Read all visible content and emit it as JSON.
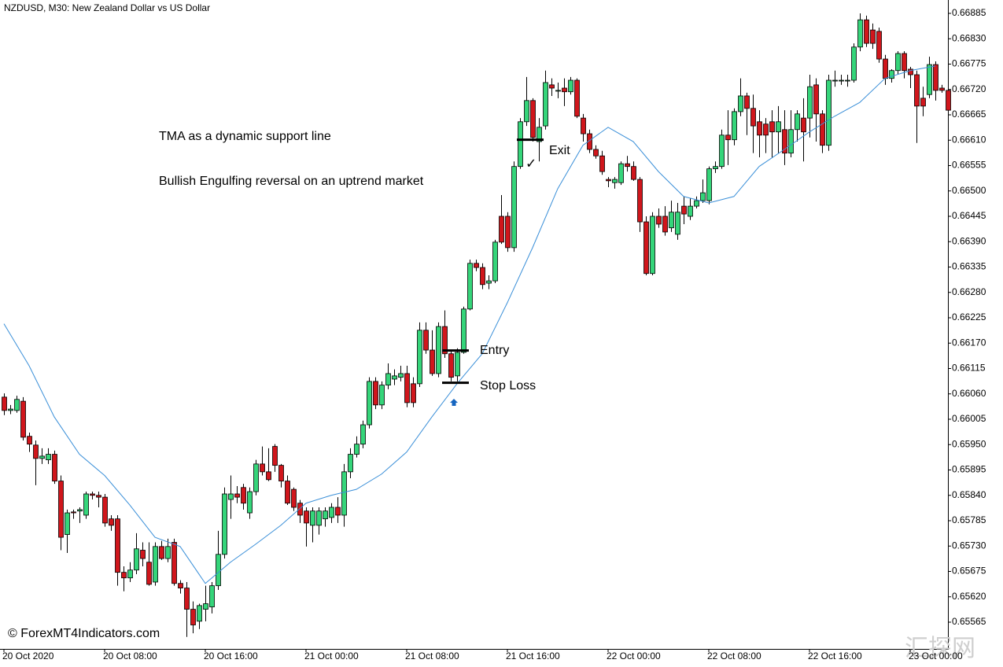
{
  "chart_data": {
    "type": "candlestick",
    "title": "NZDUSD, M30:  New Zealand Dollar vs US Dollar",
    "annotations": [
      "TMA as a dynamic support line",
      "Bullish Engulfing reversal on an uptrend market"
    ],
    "checkmark": "✓",
    "copyright": "© ForexMT4Indicators.com",
    "watermark": "汇探网",
    "bull_color": "#35d57a",
    "bear_color": "#d0161c",
    "tma_color": "#3a8fd8",
    "ylim": [
      0.65507,
      0.66914
    ],
    "yticks": [
      0.66885,
      {
        "value": 0.6683,
        "label": "0.66830"
      },
      0.66775,
      {
        "value": 0.6672,
        "label": "0.66720"
      },
      0.66665,
      {
        "value": 0.6661,
        "label": "0.66610"
      },
      0.66555,
      {
        "value": 0.665,
        "label": "0.66500"
      },
      0.66445,
      {
        "value": 0.6639,
        "label": "0.66390"
      },
      0.66335,
      {
        "value": 0.6628,
        "label": "0.66280"
      },
      0.66225,
      {
        "value": 0.6617,
        "label": "0.66170"
      },
      0.66115,
      {
        "value": 0.6606,
        "label": "0.66060"
      },
      0.66005,
      {
        "value": 0.6595,
        "label": "0.65950"
      },
      0.65895,
      {
        "value": 0.6584,
        "label": "0.65840"
      },
      0.65785,
      {
        "value": 0.6573,
        "label": "0.65730"
      },
      0.65675,
      {
        "value": 0.6562,
        "label": "0.65620"
      },
      0.65565
    ],
    "categories": [
      "20 Oct 2020",
      null,
      null,
      null,
      null,
      null,
      null,
      null,
      null,
      null,
      null,
      null,
      null,
      null,
      null,
      null,
      "20 Oct 08:00",
      null,
      null,
      null,
      null,
      null,
      null,
      null,
      null,
      null,
      null,
      null,
      null,
      null,
      null,
      null,
      "20 Oct 16:00",
      null,
      null,
      null,
      null,
      null,
      null,
      null,
      null,
      null,
      null,
      null,
      null,
      null,
      null,
      null,
      "21 Oct 00:00",
      null,
      null,
      null,
      null,
      null,
      null,
      null,
      null,
      null,
      null,
      null,
      null,
      null,
      null,
      null,
      "21 Oct 08:00",
      null,
      null,
      null,
      null,
      null,
      null,
      null,
      null,
      null,
      null,
      null,
      null,
      null,
      null,
      null,
      "21 Oct 16:00",
      null,
      null,
      null,
      null,
      null,
      null,
      null,
      null,
      null,
      null,
      null,
      null,
      null,
      null,
      null,
      "22 Oct 00:00",
      null,
      null,
      null,
      null,
      null,
      null,
      null,
      null,
      null,
      null,
      null,
      null,
      null,
      null,
      null,
      "22 Oct 08:00",
      null,
      null,
      null,
      null,
      null,
      null,
      null,
      null,
      null,
      null,
      null,
      null,
      null,
      null,
      null,
      "22 Oct 16:00",
      null,
      null,
      null,
      null,
      null,
      null,
      null,
      null,
      null,
      null,
      null,
      null,
      null,
      null,
      null,
      "23 Oct 00:00",
      null,
      null,
      null,
      null,
      null,
      null
    ],
    "open": [
      0.66053,
      0.66024,
      0.66024,
      0.66044,
      0.65968,
      0.65949,
      0.6592,
      0.65917,
      0.65929,
      0.65871,
      0.65755,
      0.65804,
      0.65806,
      0.65797,
      0.65843,
      0.6584,
      0.65836,
      0.65789,
      0.65789,
      0.65673,
      0.65661,
      0.65678,
      0.65721,
      0.65695,
      0.65652,
      0.65729,
      0.65703,
      0.65738,
      0.65649,
      0.65639,
      0.65593,
      0.65567,
      0.65593,
      0.65598,
      0.65644,
      0.65712,
      0.65831,
      0.65843,
      0.65857,
      0.65802,
      0.65848,
      0.65908,
      0.65891,
      0.65946,
      0.65905,
      0.65871,
      0.65853,
      0.65823,
      0.65806,
      0.65775,
      0.65775,
      0.65789,
      0.65792,
      0.65814,
      0.65797,
      0.65891,
      0.65929,
      0.65951,
      0.65993,
      0.66087,
      0.66036,
      0.66079,
      0.66092,
      0.66096,
      0.66104,
      0.66082,
      0.66082,
      0.66198,
      0.66155,
      0.66104,
      0.66206,
      0.66147,
      0.66099,
      0.6615,
      0.66244,
      0.66343,
      0.66334,
      0.663,
      0.66305,
      0.66445,
      0.66445,
      0.66377,
      0.66553,
      0.6665,
      0.66696,
      0.66607,
      0.66641,
      0.6673,
      0.66718,
      0.66723,
      0.66715,
      0.6674,
      0.66658,
      0.66624,
      0.6659,
      0.66576,
      0.66525,
      0.66518,
      0.66518,
      0.66559,
      0.66553,
      0.66525,
      0.66433,
      0.66321,
      0.66445,
      0.66445,
      0.6642,
      0.66406,
      0.66467,
      0.66445,
      0.66467,
      0.66479,
      0.66479,
      0.66548,
      0.66553,
      0.66621,
      0.66611,
      0.66672,
      0.66706,
      0.66679,
      0.6665,
      0.66645,
      0.6665,
      0.66628,
      0.66633,
      0.66582,
      0.66633,
      0.66658,
      0.66658,
      0.6673,
      0.66667,
      0.66599,
      0.6674,
      0.6674,
      0.6674,
      0.6674,
      0.66812,
      0.66871,
      0.66849,
      0.66846,
      0.66786,
      0.66744,
      0.66761,
      0.66798,
      0.66764,
      0.66752,
      0.66701,
      0.66709,
      0.66774,
      0.66723,
      0.66718
    ],
    "high": [
      0.66061,
      0.66036,
      0.66056,
      0.66053,
      0.65976,
      0.65959,
      0.65942,
      0.65942,
      0.65937,
      0.65883,
      0.65809,
      0.65809,
      0.65814,
      0.65848,
      0.65848,
      0.65848,
      0.65843,
      0.65797,
      0.65797,
      0.65686,
      0.65695,
      0.65758,
      0.65738,
      0.65738,
      0.65738,
      0.65741,
      0.65746,
      0.65746,
      0.65656,
      0.65652,
      0.6561,
      0.65605,
      0.65644,
      0.65652,
      0.65763,
      0.65857,
      0.65883,
      0.6586,
      0.65865,
      0.65857,
      0.65917,
      0.65946,
      0.65942,
      0.65951,
      0.65908,
      0.65883,
      0.65857,
      0.6583,
      0.65814,
      0.65814,
      0.65814,
      0.65814,
      0.65823,
      0.65836,
      0.65908,
      0.65942,
      0.65968,
      0.66002,
      0.66096,
      0.66096,
      0.66087,
      0.66126,
      0.66113,
      0.66121,
      0.66121,
      0.66096,
      0.66215,
      0.66215,
      0.66198,
      0.66215,
      0.66241,
      0.66155,
      0.66159,
      0.66249,
      0.66351,
      0.66351,
      0.66343,
      0.66317,
      0.66394,
      0.66491,
      0.66454,
      0.66564,
      0.66658,
      0.66747,
      0.66701,
      0.66658,
      0.66761,
      0.66744,
      0.66735,
      0.66744,
      0.66747,
      0.66744,
      0.66667,
      0.66633,
      0.66599,
      0.66587,
      0.6653,
      0.6653,
      0.66564,
      0.66576,
      0.66564,
      0.6653,
      0.66445,
      0.66454,
      0.66462,
      0.66467,
      0.66479,
      0.66474,
      0.66488,
      0.66484,
      0.66488,
      0.66525,
      0.66553,
      0.66564,
      0.66633,
      0.66675,
      0.66679,
      0.66744,
      0.66713,
      0.66709,
      0.66675,
      0.66658,
      0.66675,
      0.66684,
      0.66675,
      0.66675,
      0.66675,
      0.66701,
      0.66752,
      0.66744,
      0.66675,
      0.66752,
      0.66761,
      0.66752,
      0.66752,
      0.6682,
      0.66885,
      0.6688,
      0.66863,
      0.66854,
      0.66795,
      0.66764,
      0.66803,
      0.66803,
      0.66769,
      0.66761,
      0.66726,
      0.66791,
      0.66781,
      0.6673,
      0.66726
    ],
    "low": [
      0.66014,
      0.66016,
      0.66019,
      0.65959,
      0.65934,
      0.65862,
      0.65908,
      0.65908,
      0.65865,
      0.65721,
      0.65715,
      0.65789,
      0.6578,
      0.65789,
      0.65831,
      0.65814,
      0.65772,
      0.65763,
      0.65644,
      0.65632,
      0.65652,
      0.65669,
      0.65686,
      0.65644,
      0.65644,
      0.657,
      0.65695,
      0.65644,
      0.65627,
      0.65533,
      0.65541,
      0.6555,
      0.65567,
      0.65584,
      0.65635,
      0.65703,
      0.65789,
      0.65823,
      0.65809,
      0.65789,
      0.6584,
      0.65883,
      0.65871,
      0.65891,
      0.65857,
      0.65819,
      0.65806,
      0.6578,
      0.65729,
      0.65738,
      0.65755,
      0.65772,
      0.6578,
      0.6578,
      0.65772,
      0.65877,
      0.65922,
      0.65942,
      0.65985,
      0.66027,
      0.66027,
      0.6607,
      0.66079,
      0.66087,
      0.66031,
      0.66031,
      0.66075,
      0.66147,
      0.66099,
      0.66096,
      0.66138,
      0.66087,
      0.66087,
      0.66147,
      0.66241,
      0.66326,
      0.66287,
      0.66287,
      0.663,
      0.66385,
      0.66368,
      0.66368,
      0.66548,
      0.66641,
      0.66607,
      0.66564,
      0.66633,
      0.66706,
      0.66701,
      0.66684,
      0.66709,
      0.66658,
      0.66607,
      0.66582,
      0.6657,
      0.66535,
      0.66508,
      0.66505,
      0.66513,
      0.66542,
      0.66522,
      0.66411,
      0.66317,
      0.66317,
      0.6642,
      0.66403,
      0.66411,
      0.66394,
      0.66428,
      0.66437,
      0.66462,
      0.66474,
      0.66471,
      0.66539,
      0.66548,
      0.66556,
      0.66599,
      0.66662,
      0.66621,
      0.66582,
      0.66573,
      0.66582,
      0.66573,
      0.66582,
      0.66556,
      0.66573,
      0.66607,
      0.66564,
      0.66616,
      0.66607,
      0.66582,
      0.66587,
      0.66726,
      0.6673,
      0.66726,
      0.66735,
      0.66803,
      0.66812,
      0.66808,
      0.66778,
      0.6673,
      0.66735,
      0.66752,
      0.66744,
      0.66723,
      0.66604,
      0.66662,
      0.66701,
      0.66696,
      0.66713,
      0.6665
    ],
    "close": [
      0.66024,
      0.66027,
      0.66048,
      0.65966,
      0.65951,
      0.6592,
      0.65925,
      0.65929,
      0.65871,
      0.65749,
      0.65802,
      0.65802,
      0.65809,
      0.65843,
      0.6584,
      0.65836,
      0.6578,
      0.65775,
      0.65673,
      0.65661,
      0.65678,
      0.65724,
      0.65703,
      0.65647,
      0.65729,
      0.65703,
      0.65729,
      0.65649,
      0.65639,
      0.65593,
      0.65559,
      0.65601,
      0.65605,
      0.65644,
      0.65712,
      0.65843,
      0.65843,
      0.65836,
      0.65823,
      0.65848,
      0.65908,
      0.65891,
      0.65874,
      0.65905,
      0.65871,
      0.65823,
      0.65814,
      0.65797,
      0.6578,
      0.65806,
      0.65806,
      0.65806,
      0.65814,
      0.65797,
      0.65891,
      0.65929,
      0.65951,
      0.65993,
      0.66087,
      0.66036,
      0.66079,
      0.66104,
      0.66099,
      0.66104,
      0.66041,
      0.66041,
      0.66198,
      0.66155,
      0.66104,
      0.66206,
      0.66147,
      0.66096,
      0.6615,
      0.66244,
      0.66343,
      0.66334,
      0.66297,
      0.66305,
      0.66389,
      0.66389,
      0.66377,
      0.66553,
      0.6665,
      0.66696,
      0.66616,
      0.66638,
      0.66735,
      0.66723,
      0.66718,
      0.66715,
      0.6674,
      0.66662,
      0.66624,
      0.6659,
      0.66576,
      0.66542,
      0.66522,
      0.66525,
      0.66559,
      0.66553,
      0.66525,
      0.66433,
      0.66321,
      0.66445,
      0.66428,
      0.66411,
      0.66454,
      0.66454,
      0.6645,
      0.66467,
      0.66479,
      0.66496,
      0.66548,
      0.66553,
      0.66621,
      0.66611,
      0.66672,
      0.66706,
      0.66679,
      0.66641,
      0.66621,
      0.66621,
      0.66628,
      0.6665,
      0.66582,
      0.66633,
      0.66667,
      0.66628,
      0.66726,
      0.66667,
      0.66599,
      0.6674,
      0.6674,
      0.6674,
      0.6674,
      0.66812,
      0.66871,
      0.6682,
      0.6682,
      0.66786,
      0.66744,
      0.66761,
      0.66798,
      0.66761,
      0.66752,
      0.66684,
      0.66684,
      0.66774,
      0.66718,
      0.66718,
      0.66675
    ],
    "tma": {
      "x": [
        0,
        4,
        8,
        12,
        16,
        20,
        24,
        28,
        32,
        36,
        40,
        44,
        48,
        52,
        56,
        60,
        64,
        68,
        72,
        76,
        80,
        84,
        88,
        92,
        96,
        100,
        104,
        108,
        112,
        116,
        120,
        124,
        128,
        132,
        136,
        140,
        144,
        148
      ],
      "values": [
        0.66212,
        0.66121,
        0.6601,
        0.65929,
        0.65883,
        0.65819,
        0.65749,
        0.65729,
        0.65649,
        0.65695,
        0.65734,
        0.65775,
        0.65823,
        0.6584,
        0.65853,
        0.65886,
        0.65934,
        0.6601,
        0.66082,
        0.66147,
        0.66258,
        0.66377,
        0.66505,
        0.66599,
        0.66638,
        0.66607,
        0.66542,
        0.66488,
        0.66474,
        0.66488,
        0.66553,
        0.6659,
        0.66628,
        0.66662,
        0.66692,
        0.66744,
        0.66761,
        0.66771
      ]
    },
    "levels": [
      {
        "label": "Entry",
        "value": 0.66154
      },
      {
        "label": "Stop Loss",
        "value": 0.66084
      },
      {
        "label": "Exit",
        "value": 0.66611
      }
    ]
  }
}
